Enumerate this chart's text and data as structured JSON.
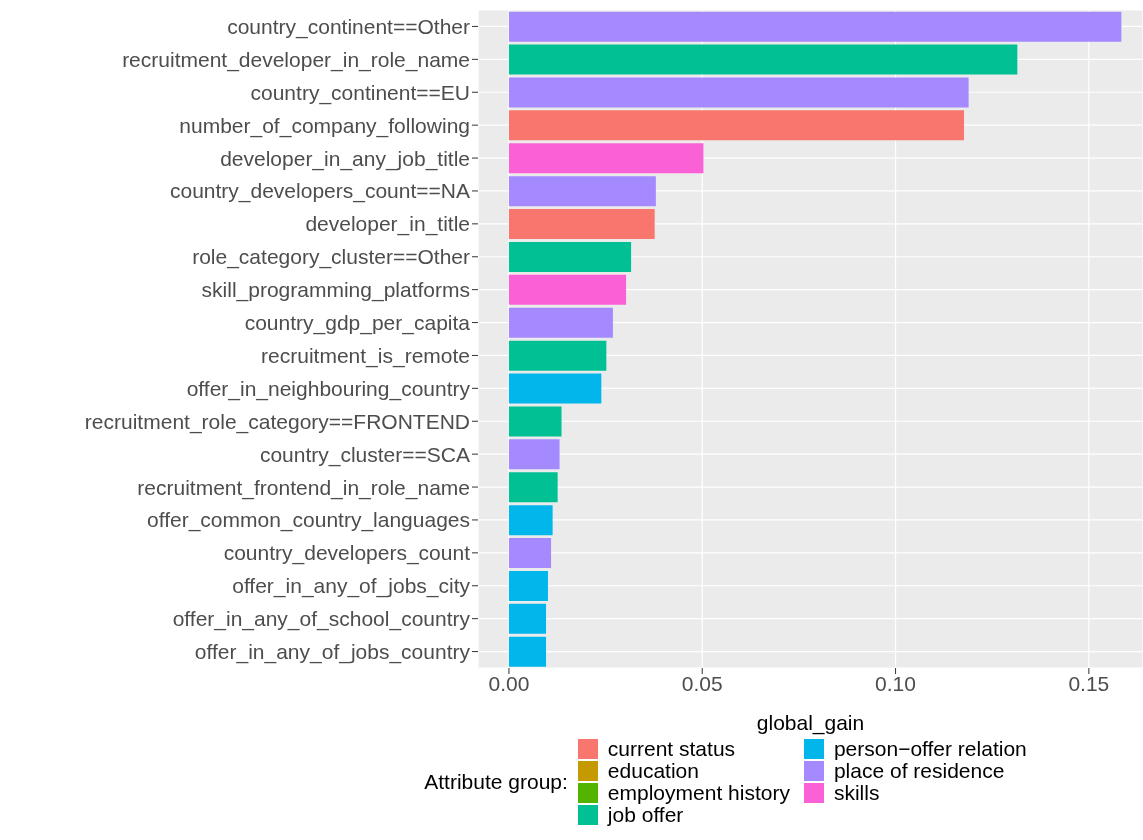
{
  "chart_data": {
    "type": "bar",
    "orientation": "horizontal",
    "stacked": true,
    "xlabel": "global_gain",
    "legend_title": "Attribute group:",
    "legend": "bottom",
    "grid": true,
    "categories": [
      "country_continent==Other",
      "recruitment_developer_in_role_name",
      "country_continent==EU",
      "number_of_company_following",
      "developer_in_any_job_title",
      "country_developers_count==NA",
      "developer_in_title",
      "role_category_cluster==Other",
      "skill_programming_platforms",
      "country_gdp_per_capita",
      "recruitment_is_remote",
      "offer_in_neighbouring_country",
      "recruitment_role_category==FRONTEND",
      "country_cluster==SCA",
      "recruitment_frontend_in_role_name",
      "offer_common_country_languages",
      "country_developers_count",
      "offer_in_any_of_jobs_city",
      "offer_in_any_of_school_country",
      "offer_in_any_of_jobs_country"
    ],
    "series": [
      {
        "name": "current status",
        "color": "#f8766d",
        "values": [
          null,
          null,
          null,
          0.1177,
          null,
          null,
          0.0377,
          null,
          null,
          null,
          null,
          null,
          null,
          null,
          null,
          null,
          null,
          null,
          null,
          null
        ]
      },
      {
        "name": "education",
        "color": "#c49a00",
        "values": [
          null,
          null,
          null,
          null,
          null,
          null,
          null,
          null,
          null,
          null,
          null,
          null,
          null,
          null,
          null,
          null,
          null,
          null,
          null,
          null
        ]
      },
      {
        "name": "employment history",
        "color": "#53b400",
        "values": [
          null,
          null,
          null,
          null,
          null,
          null,
          null,
          null,
          null,
          null,
          null,
          null,
          null,
          null,
          null,
          null,
          null,
          null,
          null,
          null
        ]
      },
      {
        "name": "job offer",
        "color": "#00c094",
        "values": [
          null,
          0.1315,
          null,
          null,
          null,
          null,
          null,
          0.0316,
          null,
          null,
          0.0252,
          null,
          0.0136,
          null,
          0.0126,
          null,
          null,
          null,
          null,
          null
        ]
      },
      {
        "name": "person−offer relation",
        "color": "#00b6eb",
        "values": [
          null,
          null,
          null,
          null,
          null,
          null,
          null,
          null,
          null,
          null,
          null,
          0.0239,
          null,
          null,
          null,
          0.0113,
          null,
          0.0101,
          0.0096,
          0.0096
        ]
      },
      {
        "name": "place of residence",
        "color": "#a58aff",
        "values": [
          0.1584,
          null,
          0.1189,
          null,
          null,
          0.038,
          null,
          null,
          null,
          0.0269,
          null,
          null,
          null,
          0.0131,
          null,
          null,
          0.0109,
          null,
          null,
          null
        ]
      },
      {
        "name": "skills",
        "color": "#fb61d7",
        "values": [
          null,
          null,
          null,
          null,
          0.0503,
          null,
          null,
          null,
          0.0303,
          null,
          null,
          null,
          null,
          null,
          null,
          null,
          null,
          null,
          null,
          null
        ]
      }
    ],
    "xlim": [
      -0.008,
      0.164
    ],
    "xticks": [
      {
        "value": 0,
        "label": "0.00"
      },
      {
        "value": 0.05,
        "label": "0.05"
      },
      {
        "value": 0.1,
        "label": "0.10"
      },
      {
        "value": 0.15,
        "label": "0.15"
      }
    ]
  }
}
